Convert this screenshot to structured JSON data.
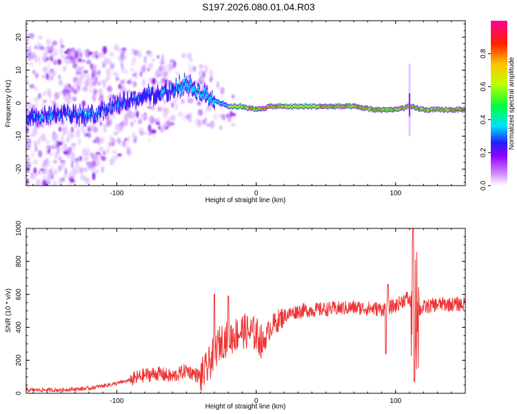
{
  "title": "S197.2026.080.01.04.R03",
  "chart_data": [
    {
      "type": "heatmap",
      "xlabel": "Height of straight line (km)",
      "ylabel": "Frequency (Hz)",
      "xlim": [
        -165,
        150
      ],
      "ylim": [
        -25,
        25
      ],
      "x_ticks": [
        -100,
        0,
        100
      ],
      "y_ticks": [
        20,
        10,
        0,
        -10,
        -20
      ],
      "x_tick_labels": [
        "-100",
        "0",
        "100"
      ],
      "y_tick_labels": [
        "20",
        "10",
        "0",
        "-10",
        "-20"
      ],
      "colorbar": {
        "label": "Normalized spectral amplitude",
        "range": [
          0,
          1
        ],
        "ticks": [
          0.0,
          0.2,
          0.4,
          0.6,
          0.8
        ],
        "tick_labels": [
          "0.0",
          "0.2",
          "0.4",
          "0.6",
          "0.8"
        ],
        "colors": [
          "#ffffff",
          "#b040ff",
          "#3030ff",
          "#00ffff",
          "#00ff00",
          "#ffff00",
          "#ff8000",
          "#ff0000",
          "#ff00a0"
        ]
      },
      "ridge": {
        "x": [
          -165,
          -140,
          -120,
          -100,
          -80,
          -60,
          -50,
          -40,
          -30,
          -20,
          -10,
          0,
          10,
          30,
          50,
          70,
          85,
          100,
          110,
          120,
          150
        ],
        "frequency": [
          -4,
          -3,
          -4,
          0,
          2,
          4,
          6,
          3,
          1,
          -1,
          -1,
          -2,
          -1,
          -1,
          -1,
          -1,
          -2,
          -2,
          -1,
          -2,
          -2
        ]
      },
      "grid": false
    },
    {
      "type": "line",
      "xlabel": "Height of straight line (km)",
      "ylabel": "SNR (10 * v/v)",
      "xlim": [
        -165,
        150
      ],
      "ylim": [
        0,
        1000
      ],
      "x_ticks": [
        -100,
        0,
        100
      ],
      "y_ticks": [
        0,
        200,
        400,
        600,
        800,
        1000
      ],
      "x_tick_labels": [
        "-100",
        "0",
        "100"
      ],
      "y_tick_labels": [
        "0",
        "200",
        "400",
        "600",
        "800",
        "1000"
      ],
      "line_color": "#ee3333",
      "series": [
        {
          "x": [
            -165,
            -140,
            -120,
            -100,
            -90,
            -80,
            -70,
            -60,
            -50,
            -40,
            -35,
            -30,
            -25,
            -20,
            -10,
            0,
            5,
            10,
            20,
            30,
            50,
            70,
            90,
            100,
            108,
            112,
            116,
            120,
            130,
            150
          ],
          "values": [
            20,
            20,
            30,
            60,
            80,
            110,
            120,
            100,
            140,
            100,
            150,
            250,
            320,
            330,
            380,
            360,
            300,
            400,
            470,
            500,
            510,
            520,
            510,
            530,
            580,
            540,
            500,
            520,
            540,
            540
          ]
        }
      ],
      "grid": false
    }
  ]
}
